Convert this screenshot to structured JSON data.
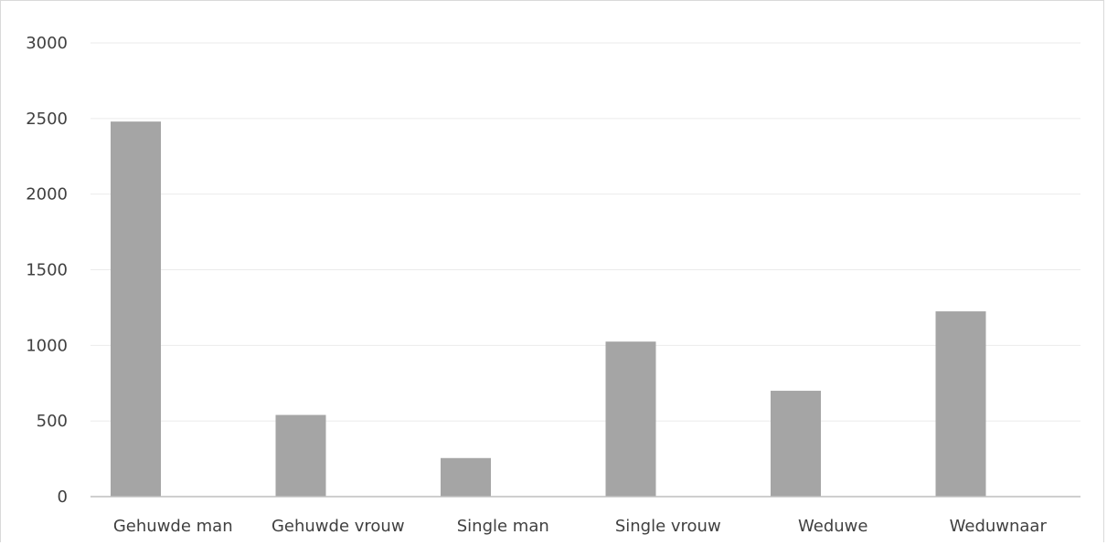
{
  "chart_data": {
    "type": "bar",
    "categories": [
      "Gehuwde man",
      "Gehuwde vrouw",
      "Single man",
      "Single vrouw",
      "Weduwe",
      "Weduwnaar"
    ],
    "series": [
      {
        "values": [
          2480,
          540,
          255,
          1025,
          700,
          1225
        ],
        "color": "#a5a5a5"
      }
    ],
    "yticks": [
      "0",
      "500",
      "1000",
      "1500",
      "2000",
      "2500",
      "3000"
    ],
    "ylim": [
      0,
      3000
    ],
    "grid": true,
    "legend": "none",
    "title": "",
    "xlabel": "",
    "ylabel": ""
  }
}
